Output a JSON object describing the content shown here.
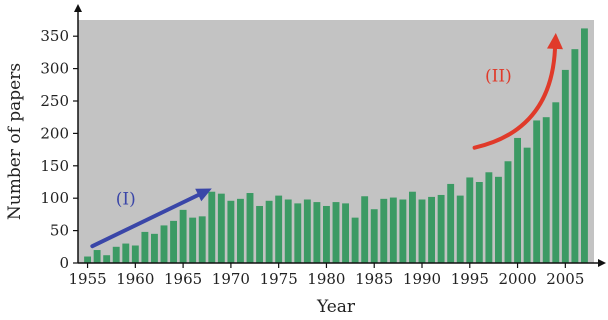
{
  "chart_data": {
    "type": "bar",
    "title": "",
    "xlabel": "Year",
    "ylabel": "Number of papers",
    "x_tick_labels": [
      "1955",
      "1960",
      "1965",
      "1970",
      "1975",
      "1980",
      "1985",
      "1990",
      "1995",
      "2000",
      "2005"
    ],
    "y_tick_labels": [
      "0",
      "50",
      "100",
      "150",
      "200",
      "250",
      "300",
      "350"
    ],
    "xlim": [
      1954,
      2008
    ],
    "ylim": [
      0,
      375
    ],
    "grid": false,
    "legend": "none",
    "colors": {
      "plot_background": "#c3c3c3",
      "bar": "#3c9a64",
      "arrow_I": "#3a46a8",
      "arrow_II": "#e03a2a"
    },
    "categories": [
      1955,
      1956,
      1957,
      1958,
      1959,
      1960,
      1961,
      1962,
      1963,
      1964,
      1965,
      1966,
      1967,
      1968,
      1969,
      1970,
      1971,
      1972,
      1973,
      1974,
      1975,
      1976,
      1977,
      1978,
      1979,
      1980,
      1981,
      1982,
      1983,
      1984,
      1985,
      1986,
      1987,
      1988,
      1989,
      1990,
      1991,
      1992,
      1993,
      1994,
      1995,
      1996,
      1997,
      1998,
      1999,
      2000,
      2001,
      2002,
      2003,
      2004,
      2005,
      2006,
      2007
    ],
    "values": [
      10,
      20,
      12,
      25,
      30,
      27,
      48,
      45,
      58,
      65,
      82,
      70,
      72,
      110,
      107,
      96,
      99,
      108,
      88,
      96,
      104,
      98,
      92,
      98,
      94,
      88,
      94,
      92,
      70,
      103,
      83,
      99,
      101,
      98,
      110,
      98,
      102,
      105,
      122,
      104,
      132,
      125,
      140,
      133,
      157,
      193,
      178,
      220,
      225,
      248,
      298,
      330,
      362
    ],
    "annotations": [
      {
        "label": "(I)",
        "from": [
          1955.5,
          26
        ],
        "to": [
          1968,
          115
        ]
      },
      {
        "label": "(II)",
        "from": [
          1995.5,
          178
        ],
        "to": [
          2004,
          355
        ]
      }
    ]
  }
}
